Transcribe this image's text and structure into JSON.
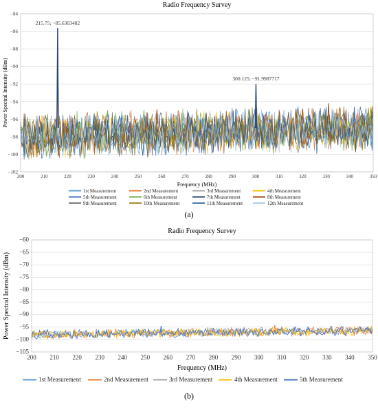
{
  "chart_data": [
    {
      "panel": "(a)",
      "type": "line",
      "title": "Radio Frequency Survey",
      "xlabel": "Frequency (MHz)",
      "ylabel": "Power Spectral Intensity (dBm)",
      "xlim": [
        200,
        350
      ],
      "ylim": [
        -102,
        -84
      ],
      "xticks": [
        200,
        210,
        220,
        230,
        240,
        250,
        260,
        270,
        280,
        290,
        300,
        310,
        320,
        330,
        340,
        350
      ],
      "yticks": [
        -84,
        -86,
        -88,
        -90,
        -92,
        -94,
        -96,
        -98,
        -100,
        -102
      ],
      "grid": true,
      "legend_position": "bottom",
      "series": [
        {
          "name": "1st Measurement",
          "color": "#5b9bd5"
        },
        {
          "name": "2nd Measurement",
          "color": "#ed7d31"
        },
        {
          "name": "3rd Measurement",
          "color": "#a5a5a5"
        },
        {
          "name": "4th Measurement",
          "color": "#ffc000"
        },
        {
          "name": "5th Measurement",
          "color": "#4472c4"
        },
        {
          "name": "6th Measurement",
          "color": "#70ad47"
        },
        {
          "name": "7th Measurement",
          "color": "#264478"
        },
        {
          "name": "8th Measurement",
          "color": "#9e480e"
        },
        {
          "name": "9th Measurement",
          "color": "#636363"
        },
        {
          "name": "10th Measurement",
          "color": "#997300"
        },
        {
          "name": "11th Measurement",
          "color": "#255e91"
        },
        {
          "name": "12th Measurement",
          "color": "#9dc3e6"
        }
      ],
      "baseline": {
        "low": -100,
        "high": -96,
        "trend_end_offset": 1.0
      },
      "peaks": [
        {
          "x": 215.75,
          "y": -85.6303482,
          "label": "215.75; −85.6303482",
          "color": "#264478",
          "secondary_y": -87.3,
          "secondary_color": "#ed7d31"
        },
        {
          "x": 300.125,
          "y": -91.9987717,
          "label": "300.125; −91.9987717",
          "color": "#264478"
        }
      ],
      "extra_spikes": [
        {
          "x": 237,
          "y": -95.0,
          "color": "#70ad47"
        },
        {
          "x": 258,
          "y": -94.9,
          "color": "#9e480e"
        },
        {
          "x": 320,
          "y": -94.8,
          "color": "#9e480e"
        },
        {
          "x": 331,
          "y": -94.2,
          "color": "#9e480e"
        },
        {
          "x": 342,
          "y": -94.6,
          "color": "#4472c4"
        },
        {
          "x": 348,
          "y": -94.8,
          "color": "#70ad47"
        }
      ]
    },
    {
      "panel": "(b)",
      "type": "line",
      "title": "Radio Frequency Survey",
      "xlabel": "Frequency (MHz)",
      "ylabel": "Power Spectral Intensity (dBm)",
      "xlim": [
        200,
        350
      ],
      "ylim": [
        -105,
        -60
      ],
      "xticks": [
        200,
        210,
        220,
        230,
        240,
        250,
        260,
        270,
        280,
        290,
        300,
        310,
        320,
        330,
        340,
        350
      ],
      "yticks": [
        -60,
        -65,
        -70,
        -75,
        -80,
        -85,
        -90,
        -95,
        -100,
        -105
      ],
      "grid": true,
      "legend_position": "bottom",
      "series": [
        {
          "name": "1st Measurement",
          "color": "#5b9bd5"
        },
        {
          "name": "2nd Measurement",
          "color": "#ed7d31"
        },
        {
          "name": "3rd Measurement",
          "color": "#a5a5a5"
        },
        {
          "name": "4th Measurement",
          "color": "#ffc000"
        },
        {
          "name": "5th Measurement",
          "color": "#4472c4"
        }
      ],
      "baseline": {
        "low": -99.5,
        "high": -96.5,
        "trend_end_offset": 1.5
      },
      "peaks": [],
      "extra_spikes": [
        {
          "x": 257,
          "y": -94.5,
          "color": "#4472c4"
        },
        {
          "x": 307,
          "y": -94.2,
          "color": "#ed7d31"
        }
      ]
    }
  ],
  "captions": [
    "(a)",
    "(b)"
  ]
}
